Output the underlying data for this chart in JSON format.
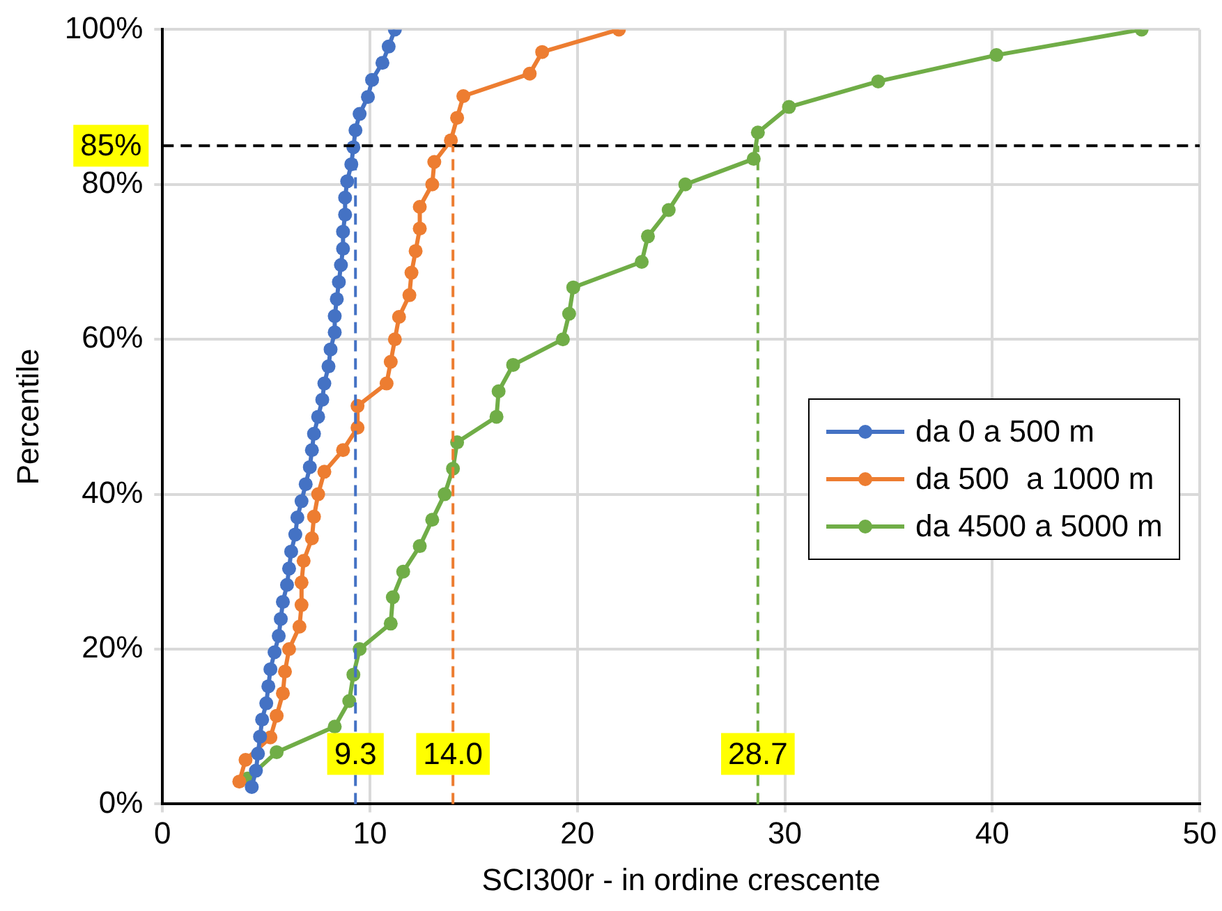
{
  "chart_data": {
    "type": "line",
    "xlabel": "SCI300r - in ordine crescente",
    "ylabel": "Percentile",
    "xlim": [
      0,
      50
    ],
    "xticks": [
      0,
      10,
      20,
      30,
      40,
      50
    ],
    "ylim": [
      0,
      100
    ],
    "yticks": [
      {
        "value": 0,
        "label": "0%"
      },
      {
        "value": 20,
        "label": "20%"
      },
      {
        "value": 40,
        "label": "40%"
      },
      {
        "value": 60,
        "label": "60%"
      },
      {
        "value": 80,
        "label": "80%"
      },
      {
        "value": 100,
        "label": "100%"
      }
    ],
    "grid": true,
    "legend": "right",
    "marker": "circle",
    "line_style": "solid",
    "series": [
      {
        "name": "da 0 a 500 m",
        "color": "#4472c4",
        "x": [
          4.3,
          4.5,
          4.6,
          4.7,
          4.8,
          5.0,
          5.1,
          5.2,
          5.4,
          5.6,
          5.7,
          5.8,
          6.0,
          6.1,
          6.2,
          6.4,
          6.5,
          6.7,
          6.9,
          7.1,
          7.2,
          7.3,
          7.5,
          7.7,
          7.8,
          8.0,
          8.1,
          8.3,
          8.3,
          8.4,
          8.5,
          8.6,
          8.7,
          8.7,
          8.8,
          8.8,
          8.9,
          9.1,
          9.2,
          9.3,
          9.5,
          9.9,
          10.1,
          10.6,
          10.9,
          11.2
        ],
        "values": [
          2.2,
          4.3,
          6.5,
          8.7,
          10.9,
          13.0,
          15.2,
          17.4,
          19.6,
          21.7,
          23.9,
          26.1,
          28.3,
          30.4,
          32.6,
          34.8,
          37.0,
          39.1,
          41.3,
          43.5,
          45.7,
          47.8,
          50.0,
          52.2,
          54.3,
          56.5,
          58.7,
          60.9,
          63.0,
          65.2,
          67.4,
          69.6,
          71.7,
          73.9,
          76.1,
          78.3,
          80.4,
          82.6,
          84.8,
          87.0,
          89.1,
          91.3,
          93.5,
          95.7,
          97.8,
          100
        ]
      },
      {
        "name": "da 500  a 1000 m",
        "color": "#ed7d31",
        "x": [
          3.7,
          4.0,
          5.2,
          5.5,
          5.8,
          5.9,
          6.1,
          6.6,
          6.7,
          6.7,
          6.8,
          7.2,
          7.3,
          7.5,
          7.8,
          8.7,
          9.4,
          9.4,
          10.8,
          11.0,
          11.2,
          11.4,
          11.9,
          12.0,
          12.2,
          12.4,
          12.4,
          13.0,
          13.1,
          13.9,
          14.2,
          14.5,
          17.7,
          18.3,
          22.0
        ],
        "values": [
          2.9,
          5.7,
          8.6,
          11.4,
          14.3,
          17.1,
          20.0,
          22.9,
          25.7,
          28.6,
          31.4,
          34.3,
          37.1,
          40.0,
          42.9,
          45.7,
          48.6,
          51.4,
          54.3,
          57.1,
          60.0,
          62.9,
          65.7,
          68.6,
          71.4,
          74.3,
          77.1,
          80.0,
          82.9,
          85.7,
          88.6,
          91.4,
          94.3,
          97.1,
          100
        ]
      },
      {
        "name": "da 4500 a 5000 m",
        "color": "#70ad47",
        "x": [
          4.1,
          5.5,
          8.3,
          9.0,
          9.2,
          9.5,
          11.0,
          11.1,
          11.6,
          12.4,
          13.0,
          13.6,
          14.0,
          14.2,
          16.1,
          16.2,
          16.9,
          19.3,
          19.6,
          19.8,
          23.1,
          23.4,
          24.4,
          25.2,
          28.5,
          28.7,
          30.2,
          34.5,
          40.2,
          47.2
        ],
        "values": [
          3.3,
          6.7,
          10.0,
          13.3,
          16.7,
          20.0,
          23.3,
          26.7,
          30.0,
          33.3,
          36.7,
          40.0,
          43.3,
          46.7,
          50.0,
          53.3,
          56.7,
          60.0,
          63.3,
          66.7,
          70.0,
          73.3,
          76.7,
          80.0,
          83.3,
          86.7,
          90.0,
          93.3,
          96.7,
          100
        ]
      }
    ],
    "ref_lines": [
      {
        "axis": "y",
        "value": 85,
        "label": "85%",
        "color": "#000000",
        "line_style": "dashed"
      },
      {
        "axis": "x",
        "value": 9.3,
        "label": "9.3",
        "color": "#4472c4",
        "line_style": "dashed"
      },
      {
        "axis": "x",
        "value": 14.0,
        "label": "14.0",
        "color": "#ed7d31",
        "line_style": "dashed"
      },
      {
        "axis": "x",
        "value": 28.7,
        "label": "28.7",
        "color": "#70ad47",
        "line_style": "dashed"
      }
    ]
  }
}
